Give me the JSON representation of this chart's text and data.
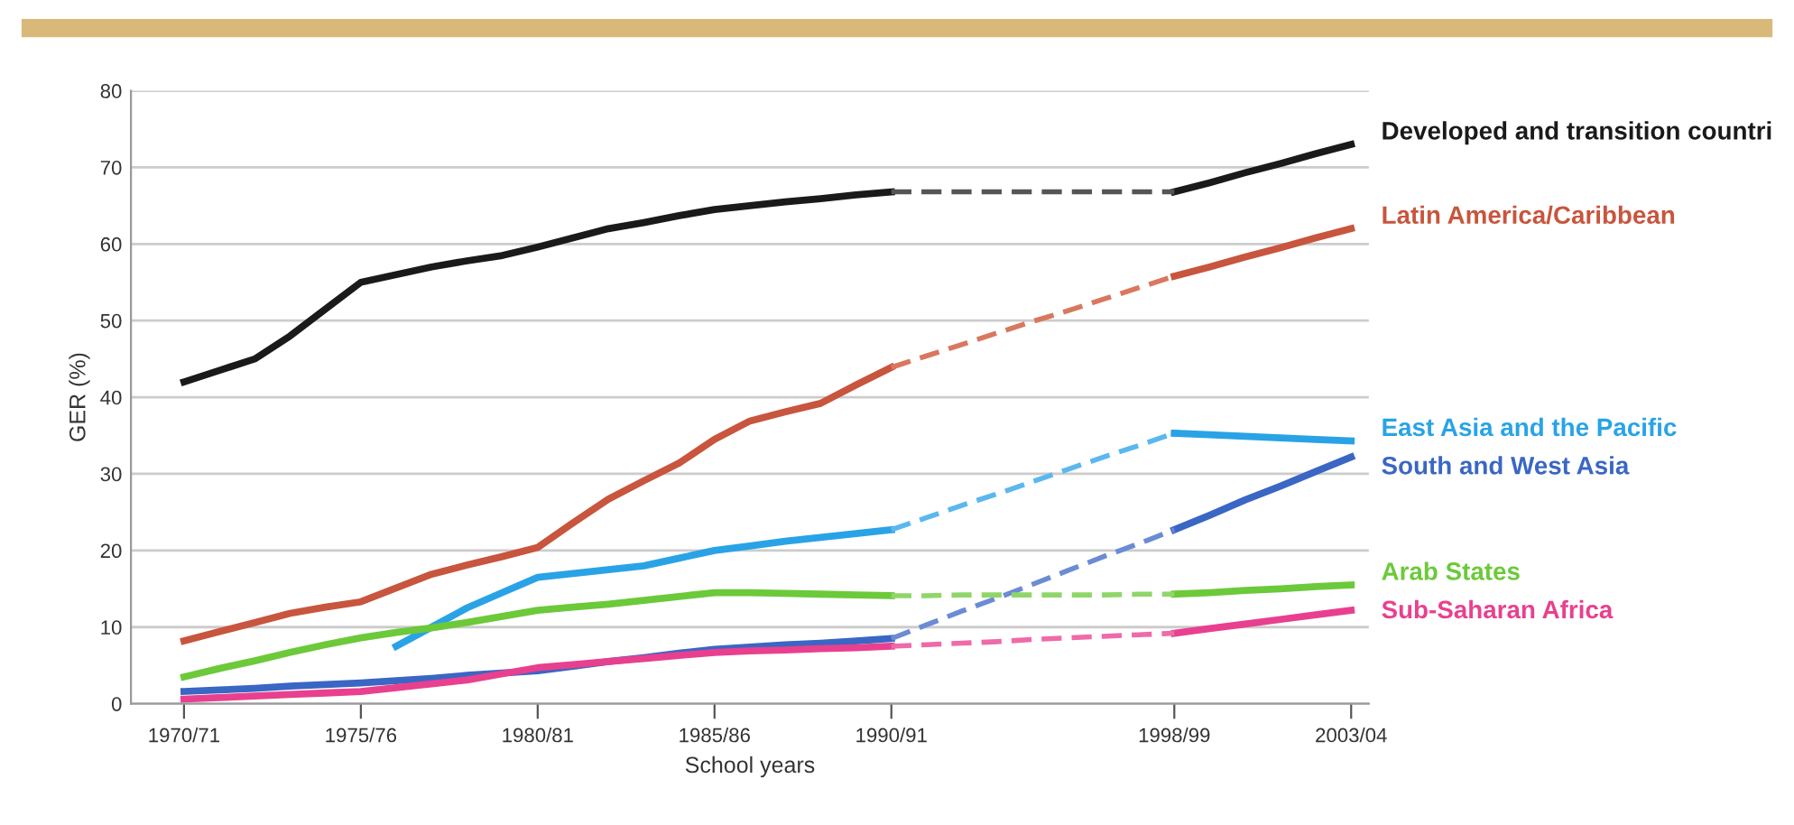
{
  "chart_data": {
    "type": "line",
    "xlabel": "School years",
    "ylabel": "GER (%)",
    "categories": [
      "1970/71",
      null,
      null,
      null,
      null,
      "1975/76",
      null,
      null,
      null,
      null,
      "1980/81",
      null,
      null,
      null,
      null,
      "1985/86",
      null,
      null,
      null,
      null,
      "1990/91",
      null,
      null,
      null,
      null,
      null,
      null,
      null,
      "1998/99",
      null,
      null,
      null,
      null,
      "2003/04"
    ],
    "ylim": [
      0,
      80
    ],
    "yticks": [
      0,
      10,
      20,
      30,
      40,
      50,
      60,
      70,
      80
    ],
    "grid": "y",
    "series": [
      {
        "name": "Developed and transition countri",
        "color": "#1a1a1a",
        "values": [
          42,
          43.5,
          45,
          48,
          51.5,
          55,
          56,
          57,
          57.8,
          58.5,
          59.6,
          60.8,
          62,
          62.8,
          63.7,
          64.5,
          65,
          65.5,
          65.9,
          66.4,
          66.8,
          null,
          null,
          null,
          null,
          null,
          null,
          null,
          66.8,
          68,
          69.3,
          70.5,
          71.8,
          73
        ]
      },
      {
        "color": "#555555",
        "line_style": "dashed",
        "values": [
          null,
          null,
          null,
          null,
          null,
          null,
          null,
          null,
          null,
          null,
          null,
          null,
          null,
          null,
          null,
          null,
          null,
          null,
          null,
          null,
          66.8,
          66.8,
          66.8,
          66.8,
          66.8,
          66.8,
          66.8,
          66.8,
          66.8,
          null,
          null,
          null,
          null,
          null
        ]
      },
      {
        "name": "Latin America/Caribbean",
        "color": "#c8553d",
        "values": [
          8.2,
          9.4,
          10.6,
          11.8,
          12.6,
          13.3,
          15.1,
          16.9,
          18.1,
          19.2,
          20.4,
          23.6,
          26.7,
          29.1,
          31.4,
          34.5,
          36.9,
          38.1,
          39.2,
          41.6,
          43.9,
          null,
          null,
          null,
          null,
          null,
          null,
          null,
          55.8,
          57,
          58.3,
          59.5,
          60.8,
          62
        ]
      },
      {
        "color": "#d9775f",
        "line_style": "dashed",
        "values": [
          null,
          null,
          null,
          null,
          null,
          null,
          null,
          null,
          null,
          null,
          null,
          null,
          null,
          null,
          null,
          null,
          null,
          null,
          null,
          null,
          43.9,
          45.4,
          46.9,
          48.4,
          49.9,
          51.3,
          52.8,
          54.3,
          55.8,
          null,
          null,
          null,
          null,
          null
        ]
      },
      {
        "name": "East Asia and the Pacific",
        "color": "#29a3e6",
        "values": [
          null,
          null,
          null,
          null,
          null,
          null,
          7.5,
          10,
          12.5,
          14.5,
          16.5,
          17,
          17.5,
          18,
          19,
          20,
          20.6,
          21.2,
          21.7,
          22.2,
          22.7,
          null,
          null,
          null,
          null,
          null,
          null,
          null,
          35.3,
          35.1,
          34.9,
          34.7,
          34.5,
          34.3
        ]
      },
      {
        "color": "#5bb8ee",
        "line_style": "dashed",
        "values": [
          null,
          null,
          null,
          null,
          null,
          null,
          null,
          null,
          null,
          null,
          null,
          null,
          null,
          null,
          null,
          null,
          null,
          null,
          null,
          null,
          22.7,
          24.3,
          25.9,
          27.4,
          29,
          30.6,
          32.2,
          33.7,
          35.3,
          null,
          null,
          null,
          null,
          null
        ]
      },
      {
        "name": "South and West Asia",
        "color": "#3a66c4",
        "values": [
          1.6,
          1.8,
          2.0,
          2.3,
          2.5,
          2.7,
          3.0,
          3.3,
          3.7,
          4.0,
          4.3,
          4.9,
          5.5,
          6.0,
          6.6,
          7.1,
          7.4,
          7.7,
          7.9,
          8.2,
          8.5,
          null,
          null,
          null,
          null,
          null,
          null,
          null,
          22.7,
          24.6,
          26.6,
          28.4,
          30.3,
          32.2
        ]
      },
      {
        "color": "#6b8bd4",
        "line_style": "dashed",
        "values": [
          null,
          null,
          null,
          null,
          null,
          null,
          null,
          null,
          null,
          null,
          null,
          null,
          null,
          null,
          null,
          null,
          null,
          null,
          null,
          null,
          8.5,
          10.3,
          12.1,
          13.8,
          15.6,
          17.4,
          19.2,
          20.9,
          22.7,
          null,
          null,
          null,
          null,
          null
        ]
      },
      {
        "name": "Arab States",
        "color": "#6cc93a",
        "values": [
          3.5,
          4.6,
          5.6,
          6.7,
          7.7,
          8.6,
          9.3,
          9.9,
          10.6,
          11.4,
          12.2,
          12.6,
          13,
          13.5,
          14,
          14.5,
          14.5,
          14.4,
          14.3,
          14.2,
          14.1,
          null,
          null,
          null,
          null,
          null,
          null,
          null,
          14.3,
          14.5,
          14.8,
          15,
          15.3,
          15.5
        ]
      },
      {
        "color": "#8fd66a",
        "line_style": "dashed",
        "values": [
          null,
          null,
          null,
          null,
          null,
          null,
          null,
          null,
          null,
          null,
          null,
          null,
          null,
          null,
          null,
          null,
          null,
          null,
          null,
          null,
          14.1,
          14.1,
          14.2,
          14.2,
          14.2,
          14.2,
          14.2,
          14.3,
          14.3,
          null,
          null,
          null,
          null,
          null
        ]
      },
      {
        "name": "Sub-Saharan Africa",
        "color": "#e8408f",
        "values": [
          0.6,
          0.8,
          1.0,
          1.2,
          1.4,
          1.6,
          2.1,
          2.6,
          3.1,
          3.9,
          4.7,
          5.1,
          5.5,
          5.9,
          6.3,
          6.7,
          6.9,
          7.0,
          7.2,
          7.3,
          7.5,
          null,
          null,
          null,
          null,
          null,
          null,
          null,
          9.2,
          9.8,
          10.4,
          11,
          11.6,
          12.2
        ]
      },
      {
        "color": "#ee6aa8",
        "line_style": "dashed",
        "values": [
          null,
          null,
          null,
          null,
          null,
          null,
          null,
          null,
          null,
          null,
          null,
          null,
          null,
          null,
          null,
          null,
          null,
          null,
          null,
          null,
          7.5,
          7.7,
          7.9,
          8.1,
          8.4,
          8.6,
          8.8,
          9.0,
          9.2,
          null,
          null,
          null,
          null,
          null
        ]
      }
    ]
  }
}
